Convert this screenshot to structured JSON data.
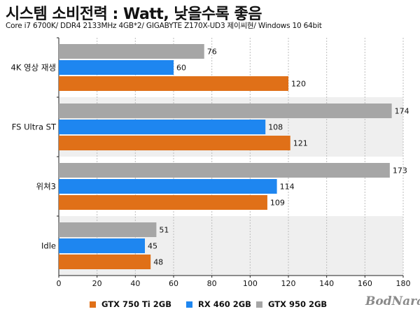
{
  "header": {
    "title": "시스템 소비전력 : Watt, 낮을수록 좋음",
    "subtitle": "Core i7 6700K/ DDR4 2133MHz 4GB*2/ GIGABYTE Z170X-UD3 제이씨현/ Windows 10 64bit"
  },
  "logo": {
    "text": "BodNara"
  },
  "colors": {
    "gtx750": "#e07018",
    "rx460": "#1e86f0",
    "gtx950": "#a6a6a6",
    "band": "#efefef",
    "grid": "#bdbdbd"
  },
  "chart_data": {
    "type": "bar",
    "orientation": "horizontal",
    "categories": [
      "4K 영상 재생",
      "FS Ultra ST",
      "위쳐3",
      "Idle"
    ],
    "series": [
      {
        "name": "GTX 950 2GB",
        "color": "#a6a6a6",
        "values": [
          76,
          174,
          173,
          51
        ]
      },
      {
        "name": "RX 460 2GB",
        "color": "#1e86f0",
        "values": [
          60,
          108,
          114,
          45
        ]
      },
      {
        "name": "GTX 750 Ti 2GB",
        "color": "#e07018",
        "values": [
          120,
          121,
          109,
          48
        ]
      }
    ],
    "legend_order": [
      "GTX 750 Ti 2GB",
      "RX 460 2GB",
      "GTX 950 2GB"
    ],
    "xlim": [
      0,
      180
    ],
    "xticks": [
      0,
      20,
      40,
      60,
      80,
      100,
      120,
      140,
      160,
      180
    ],
    "grid": true,
    "legend_position": "bottom"
  }
}
